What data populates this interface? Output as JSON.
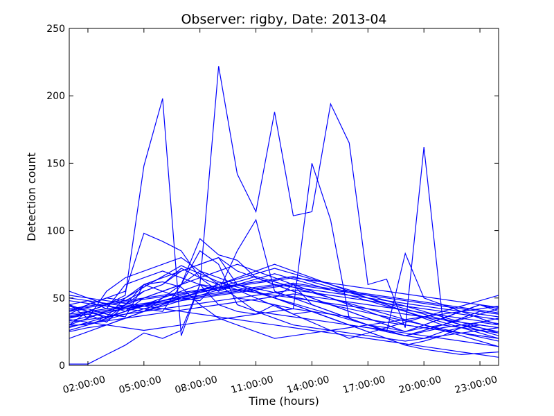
{
  "chart_data": {
    "type": "line",
    "title": "Observer: rigby, Date: 2013-04",
    "xlabel": "Time (hours)",
    "ylabel": "Detection count",
    "xlim": [
      "2013-04 01:00:00",
      "2013-04 24:00:00"
    ],
    "ylim": [
      0,
      250
    ],
    "x_tick_labels": [
      "02:00:00",
      "05:00:00",
      "08:00:00",
      "11:00:00",
      "14:00:00",
      "17:00:00",
      "20:00:00",
      "23:00:00"
    ],
    "y_tick_labels": [
      "0",
      "50",
      "100",
      "150",
      "200",
      "250"
    ],
    "grid": false,
    "legend": "none",
    "line_color": "#0000ff",
    "x": [
      "01:00",
      "02:00",
      "03:00",
      "04:00",
      "05:00",
      "06:00",
      "07:00",
      "08:00",
      "09:00",
      "10:00",
      "11:00",
      "12:00",
      "13:00",
      "14:00",
      "15:00",
      "16:00",
      "17:00",
      "18:00",
      "19:00",
      "20:00",
      "21:00",
      "22:00",
      "23:00",
      "24:00"
    ],
    "series": [
      {
        "values": [
          30,
          40,
          45,
          52,
          148,
          198,
          22,
          60,
          222,
          142,
          114,
          188,
          111,
          114,
          194,
          165,
          60,
          64,
          28,
          162,
          35,
          30,
          28,
          25
        ]
      },
      {
        "values": [
          38,
          45,
          50,
          48,
          55,
          60,
          72,
          65,
          60,
          50,
          48,
          45,
          42,
          150,
          108,
          35,
          30,
          25,
          22,
          20,
          25,
          28,
          30,
          28
        ]
      },
      {
        "values": [
          45,
          48,
          42,
          60,
          65,
          70,
          65,
          60,
          55,
          85,
          108,
          55,
          50,
          45,
          40,
          35,
          30,
          25,
          83,
          50,
          45,
          40,
          35,
          30
        ]
      },
      {
        "values": [
          1,
          1,
          8,
          15,
          24,
          20,
          26,
          60,
          45,
          40,
          38,
          45,
          38,
          40,
          35,
          30,
          25,
          20,
          15,
          18,
          22,
          28,
          32,
          35
        ]
      },
      {
        "values": [
          40,
          45,
          50,
          55,
          98,
          92,
          85,
          65,
          55,
          60,
          55,
          50,
          45,
          40,
          35,
          30,
          28,
          25,
          22,
          25,
          28,
          30,
          32,
          30
        ]
      },
      {
        "values": [
          35,
          40,
          45,
          50,
          60,
          65,
          70,
          75,
          80,
          60,
          55,
          50,
          60,
          45,
          40,
          35,
          30,
          28,
          25,
          30,
          35,
          40,
          45,
          42
        ]
      },
      {
        "values": [
          45,
          40,
          35,
          45,
          55,
          60,
          70,
          75,
          80,
          70,
          65,
          60,
          55,
          50,
          45,
          40,
          35,
          30,
          25,
          28,
          30,
          35,
          40,
          38
        ]
      },
      {
        "values": [
          30,
          35,
          40,
          45,
          50,
          55,
          60,
          65,
          70,
          75,
          70,
          65,
          60,
          55,
          50,
          45,
          40,
          35,
          30,
          28,
          26,
          24,
          22,
          20
        ]
      },
      {
        "values": [
          25,
          28,
          30,
          35,
          40,
          45,
          50,
          55,
          60,
          65,
          70,
          75,
          70,
          65,
          60,
          55,
          50,
          45,
          40,
          35,
          30,
          28,
          26,
          24
        ]
      },
      {
        "values": [
          50,
          48,
          46,
          44,
          42,
          40,
          60,
          85,
          75,
          45,
          40,
          38,
          36,
          34,
          32,
          30,
          28,
          26,
          24,
          22,
          20,
          18,
          16,
          14
        ]
      },
      {
        "values": [
          20,
          25,
          30,
          35,
          40,
          50,
          60,
          70,
          65,
          60,
          55,
          50,
          45,
          40,
          35,
          30,
          25,
          20,
          15,
          12,
          10,
          8,
          9,
          10
        ]
      },
      {
        "values": [
          55,
          50,
          45,
          40,
          50,
          55,
          60,
          94,
          82,
          78,
          65,
          60,
          55,
          50,
          45,
          40,
          35,
          30,
          25,
          30,
          35,
          40,
          45,
          40
        ]
      },
      {
        "values": [
          42,
          44,
          46,
          48,
          50,
          52,
          54,
          56,
          58,
          60,
          62,
          64,
          66,
          62,
          58,
          54,
          50,
          46,
          42,
          38,
          34,
          30,
          26,
          22
        ]
      },
      {
        "values": [
          35,
          38,
          32,
          45,
          60,
          55,
          50,
          48,
          62,
          58,
          54,
          50,
          46,
          42,
          38,
          34,
          30,
          26,
          22,
          26,
          30,
          34,
          38,
          42
        ]
      },
      {
        "values": [
          30,
          30,
          35,
          40,
          45,
          50,
          55,
          60,
          58,
          56,
          54,
          52,
          50,
          48,
          46,
          44,
          42,
          40,
          38,
          36,
          34,
          32,
          30,
          28
        ]
      },
      {
        "values": [
          40,
          42,
          38,
          36,
          60,
          62,
          58,
          45,
          35,
          30,
          25,
          20,
          22,
          24,
          26,
          28,
          30,
          32,
          34,
          36,
          38,
          40,
          42,
          44
        ]
      },
      {
        "values": [
          28,
          32,
          36,
          40,
          44,
          48,
          52,
          56,
          60,
          64,
          68,
          72,
          68,
          64,
          60,
          56,
          52,
          48,
          44,
          40,
          36,
          32,
          28,
          24
        ]
      },
      {
        "values": [
          45,
          35,
          55,
          65,
          70,
          75,
          80,
          70,
          60,
          50,
          40,
          35,
          30,
          28,
          26,
          24,
          22,
          20,
          18,
          20,
          22,
          24,
          26,
          28
        ]
      },
      {
        "values": [
          38,
          40,
          42,
          44,
          46,
          48,
          50,
          52,
          54,
          56,
          58,
          60,
          58,
          56,
          54,
          52,
          50,
          48,
          46,
          44,
          42,
          40,
          38,
          36
        ]
      },
      {
        "values": [
          33,
          36,
          39,
          42,
          45,
          48,
          51,
          54,
          57,
          60,
          57,
          54,
          51,
          48,
          45,
          42,
          39,
          36,
          33,
          30,
          27,
          24,
          21,
          18
        ]
      },
      {
        "values": [
          48,
          46,
          44,
          42,
          40,
          44,
          48,
          52,
          56,
          60,
          64,
          68,
          64,
          60,
          56,
          52,
          48,
          44,
          40,
          36,
          32,
          28,
          24,
          20
        ]
      },
      {
        "values": [
          26,
          30,
          34,
          38,
          42,
          46,
          50,
          54,
          58,
          62,
          66,
          62,
          58,
          54,
          50,
          46,
          42,
          38,
          34,
          30,
          26,
          22,
          18,
          14
        ]
      },
      {
        "values": [
          44,
          40,
          36,
          50,
          58,
          66,
          74,
          68,
          62,
          56,
          50,
          44,
          38,
          32,
          26,
          20,
          24,
          28,
          32,
          36,
          40,
          44,
          48,
          52
        ]
      },
      {
        "values": [
          36,
          38,
          40,
          42,
          44,
          46,
          48,
          50,
          52,
          54,
          56,
          58,
          60,
          58,
          56,
          54,
          52,
          50,
          48,
          46,
          44,
          42,
          40,
          38
        ]
      },
      {
        "values": [
          32,
          34,
          36,
          38,
          40,
          42,
          44,
          46,
          48,
          50,
          52,
          54,
          56,
          54,
          52,
          50,
          48,
          46,
          44,
          42,
          40,
          38,
          36,
          34
        ]
      },
      {
        "values": [
          52,
          50,
          48,
          46,
          44,
          42,
          40,
          38,
          36,
          34,
          32,
          30,
          28,
          26,
          24,
          22,
          20,
          18,
          16,
          14,
          12,
          10,
          8,
          6
        ]
      },
      {
        "values": [
          29,
          31,
          33,
          35,
          37,
          39,
          41,
          43,
          45,
          47,
          49,
          51,
          53,
          51,
          49,
          47,
          45,
          43,
          41,
          39,
          37,
          35,
          33,
          31
        ]
      },
      {
        "values": [
          41,
          43,
          45,
          47,
          49,
          51,
          53,
          55,
          57,
          59,
          61,
          63,
          65,
          63,
          61,
          59,
          57,
          55,
          53,
          51,
          49,
          47,
          45,
          43
        ]
      },
      {
        "values": [
          37,
          39,
          41,
          43,
          45,
          47,
          49,
          51,
          53,
          55,
          57,
          59,
          61,
          59,
          57,
          55,
          53,
          51,
          49,
          47,
          45,
          43,
          41,
          39
        ]
      },
      {
        "values": [
          34,
          32,
          30,
          28,
          26,
          28,
          30,
          32,
          34,
          36,
          38,
          40,
          42,
          40,
          38,
          36,
          34,
          32,
          30,
          28,
          26,
          24,
          22,
          20
        ]
      }
    ]
  }
}
